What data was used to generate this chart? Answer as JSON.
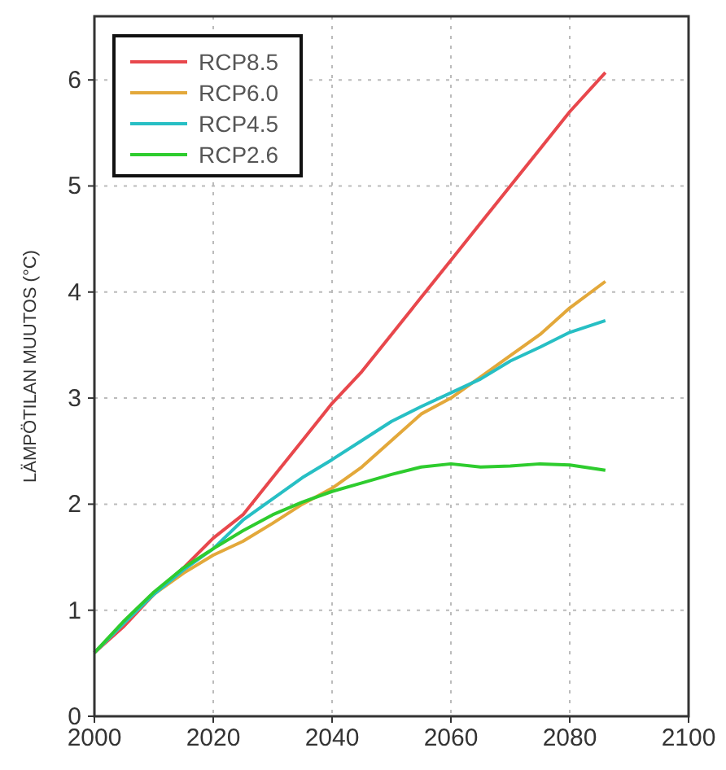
{
  "chart_data": {
    "type": "line",
    "ylabel": "LÄMPÖTILAN MUUTOS (°C)",
    "x": [
      2000,
      2005,
      2010,
      2015,
      2020,
      2025,
      2030,
      2035,
      2040,
      2045,
      2050,
      2055,
      2060,
      2065,
      2070,
      2075,
      2080,
      2086
    ],
    "series": [
      {
        "name": "RCP8.5",
        "color": "#e8474c",
        "values": [
          0.6,
          0.85,
          1.15,
          1.4,
          1.68,
          1.9,
          2.25,
          2.6,
          2.95,
          3.25,
          3.6,
          3.95,
          4.3,
          4.65,
          5.0,
          5.35,
          5.7,
          6.07
        ]
      },
      {
        "name": "RCP6.0",
        "color": "#e3a83a",
        "values": [
          0.6,
          0.88,
          1.15,
          1.35,
          1.52,
          1.65,
          1.82,
          2.0,
          2.15,
          2.35,
          2.6,
          2.85,
          3.0,
          3.2,
          3.4,
          3.6,
          3.85,
          4.1
        ]
      },
      {
        "name": "RCP4.5",
        "color": "#27bfc4",
        "values": [
          0.6,
          0.88,
          1.15,
          1.38,
          1.58,
          1.85,
          2.05,
          2.25,
          2.42,
          2.6,
          2.78,
          2.92,
          3.05,
          3.18,
          3.35,
          3.48,
          3.62,
          3.73
        ]
      },
      {
        "name": "RCP2.6",
        "color": "#2ecc2e",
        "values": [
          0.6,
          0.9,
          1.17,
          1.4,
          1.58,
          1.75,
          1.9,
          2.02,
          2.12,
          2.2,
          2.28,
          2.35,
          2.38,
          2.35,
          2.36,
          2.38,
          2.37,
          2.32
        ]
      }
    ],
    "xlim": [
      2000,
      2100
    ],
    "xticks": [
      2000,
      2020,
      2040,
      2060,
      2080,
      2100
    ],
    "ylim": [
      0,
      6.6
    ],
    "yticks": [
      0,
      1,
      2,
      3,
      4,
      5,
      6
    ],
    "grid": true,
    "legend": "top left",
    "line_style": "solid",
    "marker": "none"
  }
}
